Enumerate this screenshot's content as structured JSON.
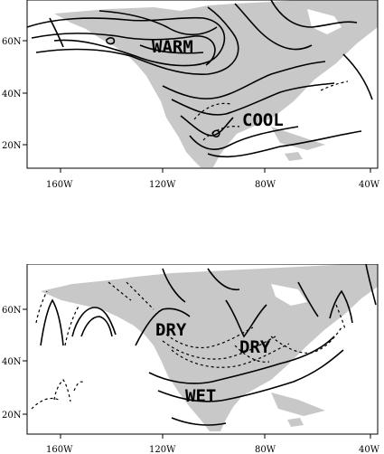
{
  "maps": [
    {
      "id": "temperature",
      "x_ticks": [
        "160W",
        "120W",
        "80W",
        "40W"
      ],
      "y_ticks": [
        "60N",
        "40N",
        "20N"
      ],
      "region_labels": [
        "WARM",
        "COOL"
      ],
      "land_color": "#c8c8c8"
    },
    {
      "id": "precipitation",
      "x_ticks": [
        "160W",
        "120W",
        "80W",
        "40W"
      ],
      "y_ticks": [
        "60N",
        "40N",
        "20N"
      ],
      "region_labels": [
        "DRY",
        "DRY",
        "WET"
      ],
      "land_color": "#c8c8c8"
    }
  ]
}
